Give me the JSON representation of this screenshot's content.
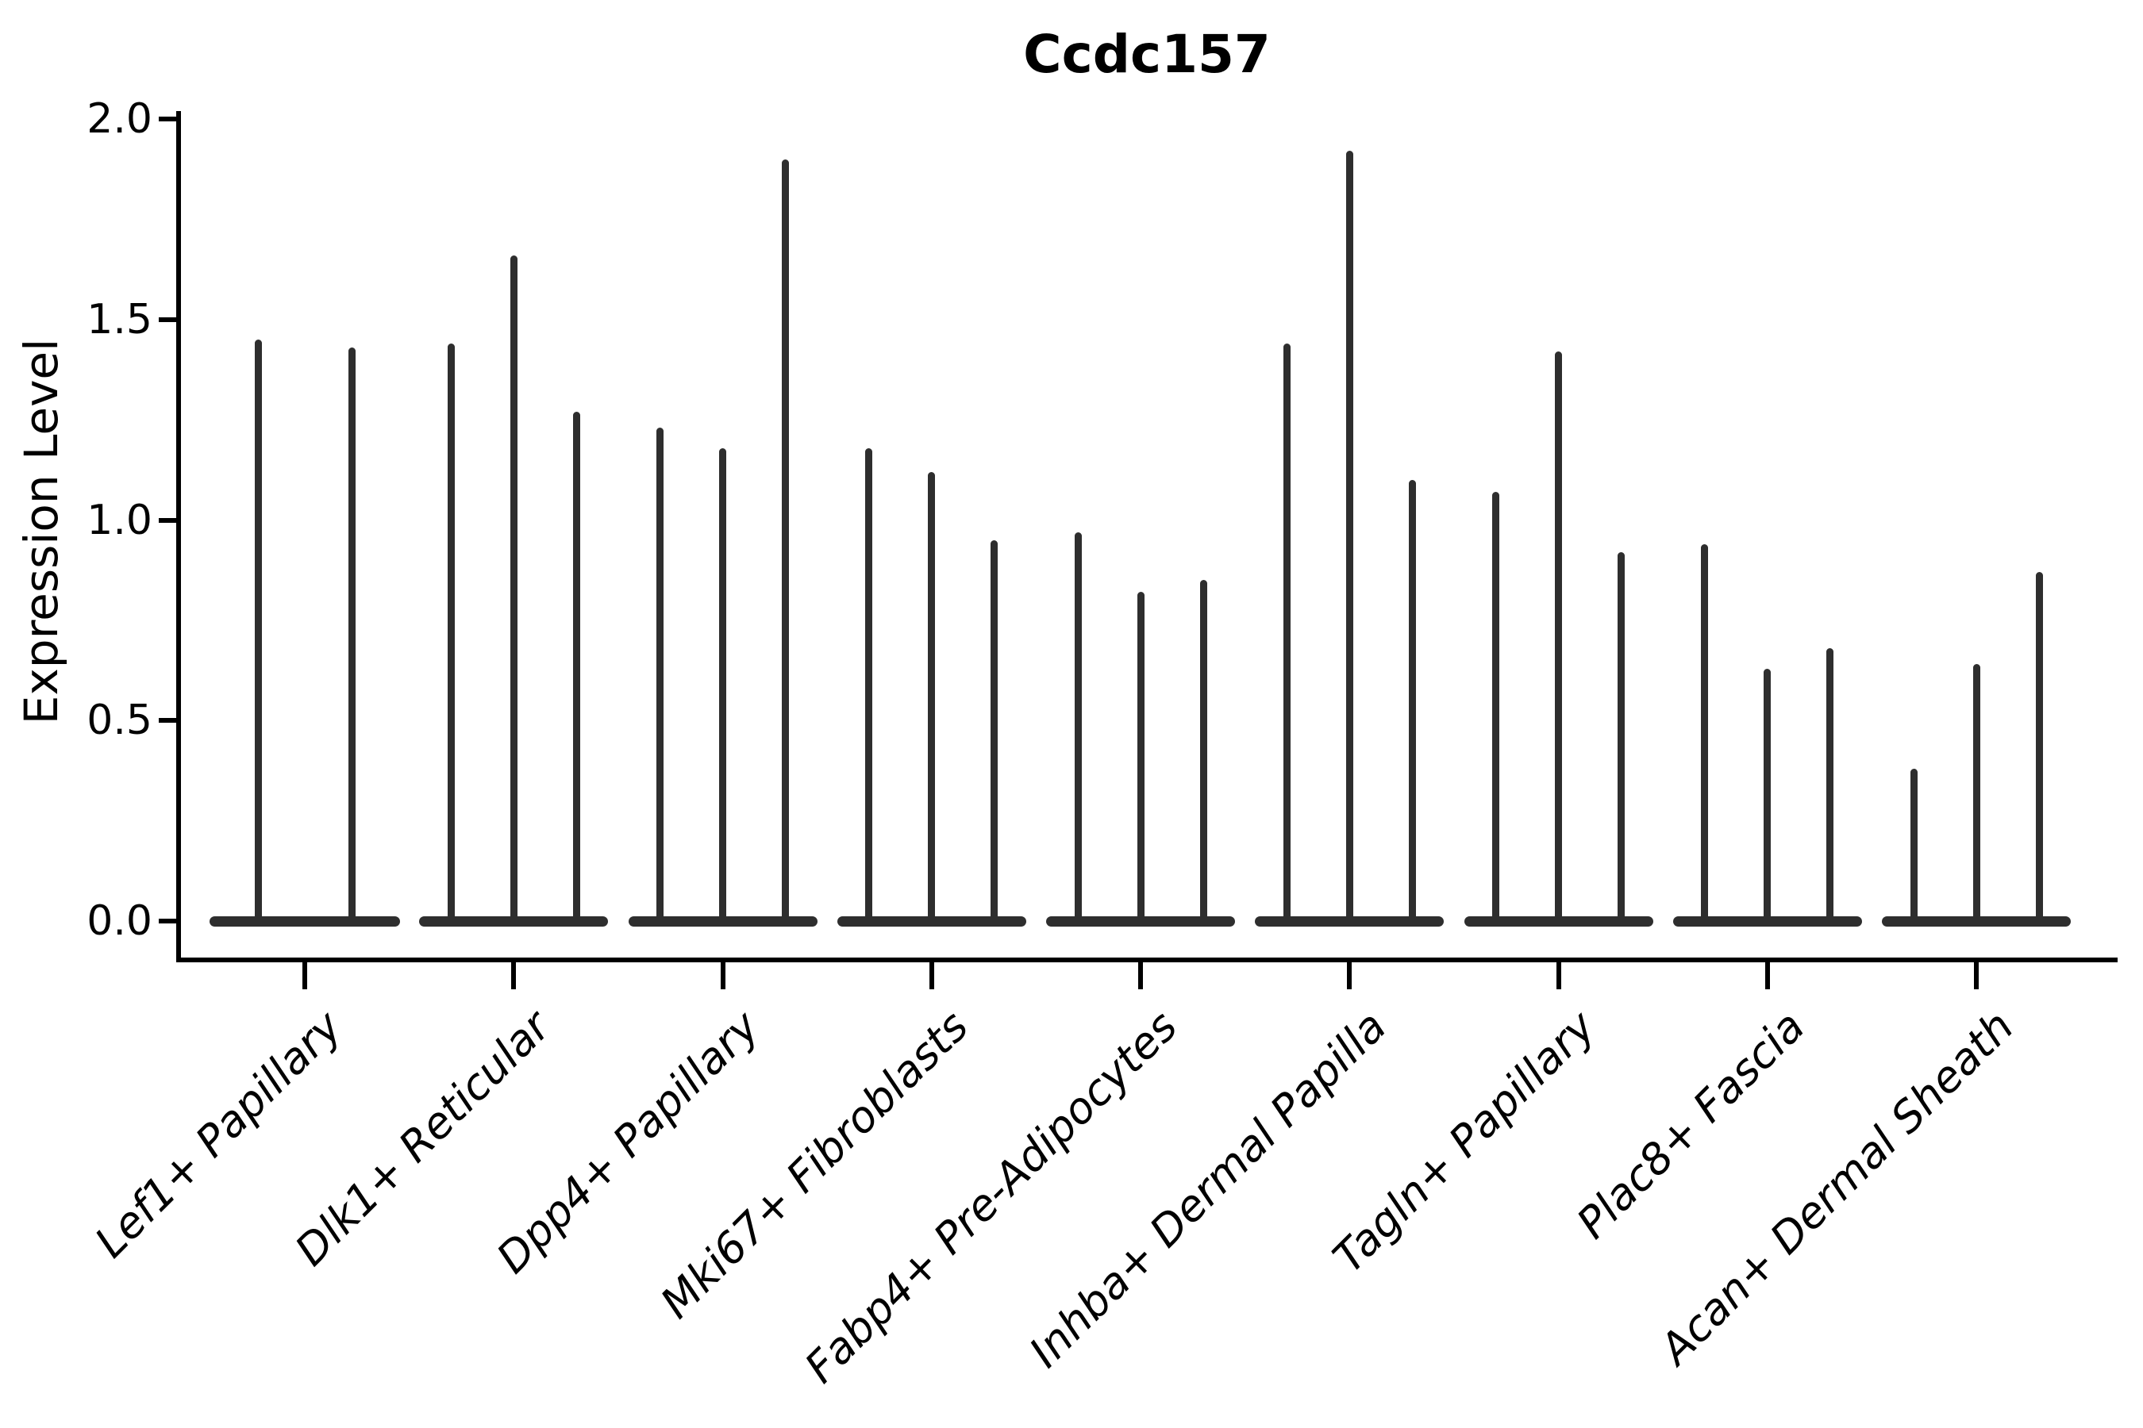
{
  "chart_data": {
    "type": "violin",
    "title": "Ccdc157",
    "ylabel": "Expression Level",
    "xlabel": "",
    "ylim": [
      0.0,
      2.0
    ],
    "grid": false,
    "legend": "none",
    "yticks": [
      {
        "label": "0.0",
        "value": 0.0
      },
      {
        "label": "0.5",
        "value": 0.5
      },
      {
        "label": "1.0",
        "value": 1.0
      },
      {
        "label": "1.5",
        "value": 1.5
      },
      {
        "label": "2.0",
        "value": 2.0
      }
    ],
    "categories": [
      "Lef1+ Papillary",
      "Dlk1+ Reticular",
      "Dpp4+ Papillary",
      "Mki67+ Fibroblasts",
      "Fabp4+ Pre-Adipocytes",
      "Inhba+ Dermal Papilla",
      "Tagln+ Papillary",
      "Plac8+ Fascia",
      "Acan+ Dermal Sheath"
    ],
    "groups": [
      {
        "category": "Lef1+ Papillary",
        "violin_maxima": [
          1.45,
          1.43
        ]
      },
      {
        "category": "Dlk1+ Reticular",
        "violin_maxima": [
          1.44,
          1.66,
          1.27
        ]
      },
      {
        "category": "Dpp4+ Papillary",
        "violin_maxima": [
          1.23,
          1.18,
          1.9
        ]
      },
      {
        "category": "Mki67+ Fibroblasts",
        "violin_maxima": [
          1.18,
          1.12,
          0.95
        ]
      },
      {
        "category": "Fabp4+ Pre-Adipocytes",
        "violin_maxima": [
          0.97,
          0.82,
          0.85
        ]
      },
      {
        "category": "Inhba+ Dermal Papilla",
        "violin_maxima": [
          1.44,
          1.92,
          1.1
        ]
      },
      {
        "category": "Tagln+ Papillary",
        "violin_maxima": [
          1.07,
          1.42,
          0.92
        ]
      },
      {
        "category": "Plac8+ Fascia",
        "violin_maxima": [
          0.94,
          0.63,
          0.68
        ]
      },
      {
        "category": "Acan+ Dermal Sheath",
        "violin_maxima": [
          0.38,
          0.64,
          0.87
        ]
      }
    ],
    "violin_min": 0.0
  },
  "colors": {
    "violin": "#2e2e2e",
    "axis": "#000000",
    "text": "#000000",
    "background": "#ffffff"
  }
}
